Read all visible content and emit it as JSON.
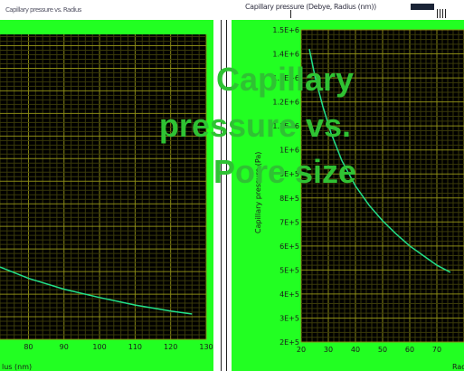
{
  "window": {
    "left_title": "Capillary pressure vs. Radius",
    "right_title": "Capillary pressure (Debye, Radius (nm))"
  },
  "overlay_text": [
    "Capillary",
    "pressure vs.",
    "Pore size"
  ],
  "colors": {
    "frame": "#22ff22",
    "plot_bg": "#000000",
    "grid_minor": "#3a3a0a",
    "grid_major": "#8a8a16",
    "curve": "#22e08a",
    "overlay": "#2fc233"
  },
  "chart_data": [
    {
      "type": "line",
      "title": "",
      "xlabel": "lus (nm)",
      "ylabel": "",
      "xlim": [
        72,
        130
      ],
      "ylim": [
        200000,
        1550000
      ],
      "x_ticks": [
        "80",
        "90",
        "100",
        "110",
        "120",
        "130"
      ],
      "grid": true,
      "series": [
        {
          "x": [
            72,
            80,
            90,
            100,
            110,
            120,
            126
          ],
          "y": [
            520000,
            470000,
            422000,
            385000,
            352000,
            325000,
            312000
          ]
        }
      ]
    },
    {
      "type": "line",
      "title": "",
      "xlabel": "Rad",
      "ylabel": "Capillary pressure (Pa)",
      "xlim": [
        20,
        80
      ],
      "ylim": [
        200000,
        1500000
      ],
      "x_ticks": [
        "20",
        "30",
        "40",
        "50",
        "60",
        "70"
      ],
      "y_ticks": [
        "1.5E+6",
        "1.4E+6",
        "1.3E+6",
        "1.2E+6",
        "1.1E+6",
        "1E+6",
        "9E+5",
        "8E+5",
        "7E+5",
        "6E+5",
        "5E+5",
        "4E+5",
        "3E+5",
        "2E+5"
      ],
      "grid": true,
      "series": [
        {
          "x": [
            23,
            25,
            28,
            31,
            35,
            40,
            45,
            50,
            55,
            60,
            65,
            70,
            75
          ],
          "y": [
            1420000,
            1310000,
            1180000,
            1070000,
            955000,
            850000,
            770000,
            705000,
            650000,
            600000,
            560000,
            520000,
            490000
          ]
        }
      ]
    }
  ]
}
